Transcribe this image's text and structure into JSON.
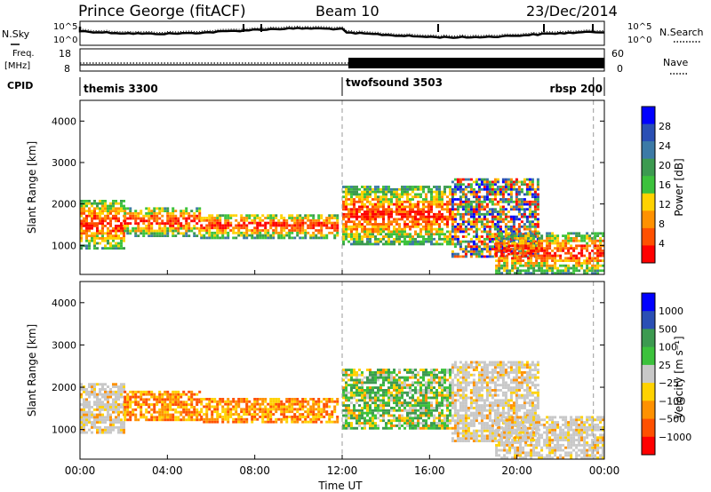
{
  "header": {
    "station": "Prince George (fitACF)",
    "beam": "Beam 10",
    "date": "23/Dec/2014"
  },
  "panel_labels": {
    "nsky": "N.Sky",
    "nsearch": "N.Search",
    "freq_line1": "Freq.",
    "freq_line2": "[MHz]",
    "nave": "Nave",
    "cpid": "CPID"
  },
  "noise_axis": {
    "left_ticks": [
      "10^5",
      "10^0"
    ],
    "right_ticks": [
      "10^5",
      "10^0"
    ]
  },
  "freq_axis": {
    "left_ticks": [
      "18",
      "8"
    ],
    "right_ticks": [
      "60",
      "0"
    ]
  },
  "cpid_segments": [
    {
      "label": "themis 3300",
      "start_hour": 0.0,
      "end_hour": 12.0
    },
    {
      "label": "twofsound 3503",
      "start_hour": 12.0,
      "end_hour": 23.5
    },
    {
      "label": "rbsp 200",
      "start_hour": 23.5,
      "end_hour": 24.0
    }
  ],
  "colors": {
    "power_scale": [
      "#0000ff",
      "#2a4fb4",
      "#3c7aa6",
      "#3c9a50",
      "#3cc23c",
      "#ffd200",
      "#ff9100",
      "#ff5000",
      "#ff0000"
    ],
    "velocity_scale": [
      "#0000ff",
      "#2a4fb4",
      "#3c9a50",
      "#3cc23c",
      "#c8c8c8",
      "#ffd200",
      "#ff9100",
      "#ff5000",
      "#ff0000"
    ],
    "ground_scatter": "#bebebe"
  },
  "chart_data": [
    {
      "type": "heatmap",
      "name": "power",
      "ylabel": "Slant Range [km]",
      "ylim": [
        300,
        4500
      ],
      "xlim": [
        0,
        24
      ],
      "colorbar": {
        "label": "Power [dB]",
        "ticks": [
          "28",
          "24",
          "20",
          "16",
          "12",
          "8",
          "4"
        ],
        "range": [
          0,
          30
        ]
      },
      "backscatter_bands": [
        {
          "start_hour": 0.0,
          "end_hour": 2.0,
          "low_km": 900,
          "high_km": 2100,
          "level": "high"
        },
        {
          "start_hour": 2.0,
          "end_hour": 5.5,
          "low_km": 1200,
          "high_km": 1900,
          "level": "high"
        },
        {
          "start_hour": 5.5,
          "end_hour": 11.8,
          "low_km": 1150,
          "high_km": 1750,
          "level": "high"
        },
        {
          "start_hour": 12.0,
          "end_hour": 17.0,
          "low_km": 1000,
          "high_km": 2400,
          "level": "high"
        },
        {
          "start_hour": 17.0,
          "end_hour": 21.0,
          "low_km": 700,
          "high_km": 2600,
          "level": "mixed"
        },
        {
          "start_hour": 19.0,
          "end_hour": 24.0,
          "low_km": 300,
          "high_km": 1300,
          "level": "high"
        }
      ]
    },
    {
      "type": "heatmap",
      "name": "velocity",
      "xlabel": "Time UT",
      "ylabel": "Slant Range [km]",
      "ylim": [
        300,
        4500
      ],
      "xlim": [
        0,
        24
      ],
      "x_ticks": [
        "00:00",
        "04:00",
        "08:00",
        "12:00",
        "16:00",
        "20:00",
        "00:00"
      ],
      "colorbar": {
        "label": "Velocity [m s⁻¹]",
        "ticks": [
          "1000",
          "500",
          "100",
          "25",
          "−25",
          "−100",
          "−500",
          "−1000"
        ],
        "range": [
          -1000,
          1000
        ]
      },
      "backscatter_bands": [
        {
          "start_hour": 0.0,
          "end_hour": 2.0,
          "low_km": 900,
          "high_km": 2100,
          "level": "ground"
        },
        {
          "start_hour": 2.0,
          "end_hour": 5.5,
          "low_km": 1200,
          "high_km": 1900,
          "level": "negative"
        },
        {
          "start_hour": 5.5,
          "end_hour": 11.8,
          "low_km": 1150,
          "high_km": 1750,
          "level": "negative"
        },
        {
          "start_hour": 12.0,
          "end_hour": 17.0,
          "low_km": 1000,
          "high_km": 2400,
          "level": "positive"
        },
        {
          "start_hour": 17.0,
          "end_hour": 21.0,
          "low_km": 700,
          "high_km": 2600,
          "level": "ground"
        },
        {
          "start_hour": 19.0,
          "end_hour": 24.0,
          "low_km": 300,
          "high_km": 1300,
          "level": "ground"
        }
      ]
    }
  ]
}
